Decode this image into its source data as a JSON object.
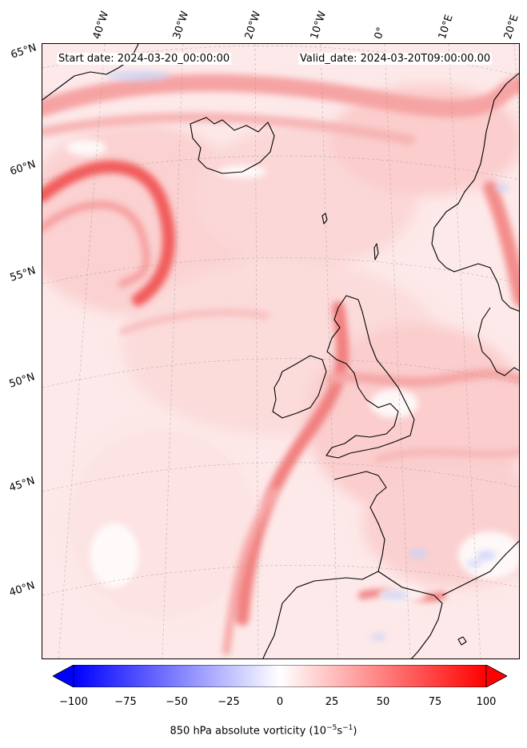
{
  "header": {
    "start_date": "Start date: 2024-03-20_00:00:00",
    "valid_date": "Valid_date: 2024-03-20T09:00:00.00"
  },
  "map": {
    "lon_labels": [
      "40°W",
      "30°W",
      "20°W",
      "10°W",
      "0°",
      "10°E",
      "20°E"
    ],
    "lat_labels": [
      "65°N",
      "60°N",
      "55°N",
      "50°N",
      "45°N",
      "40°N"
    ],
    "field_colors": {
      "background": "#fde8e8",
      "strong_positive": "#f25c5c",
      "moderate_positive": "#f7a0a0",
      "weak_positive": "#fbcaca",
      "near_zero": "#ffffff",
      "negative": "#c8d2f7"
    }
  },
  "colorbar": {
    "ticks": [
      "−100",
      "−75",
      "−50",
      "−25",
      "0",
      "25",
      "50",
      "75",
      "100"
    ],
    "label": "850 hPa absolute vorticity (10",
    "label_exp1": "−5",
    "label_mid": "s",
    "label_exp2": "−1",
    "label_end": ")",
    "min_color": "#0000ff",
    "mid_color": "#ffffff",
    "max_color": "#ff0000"
  }
}
